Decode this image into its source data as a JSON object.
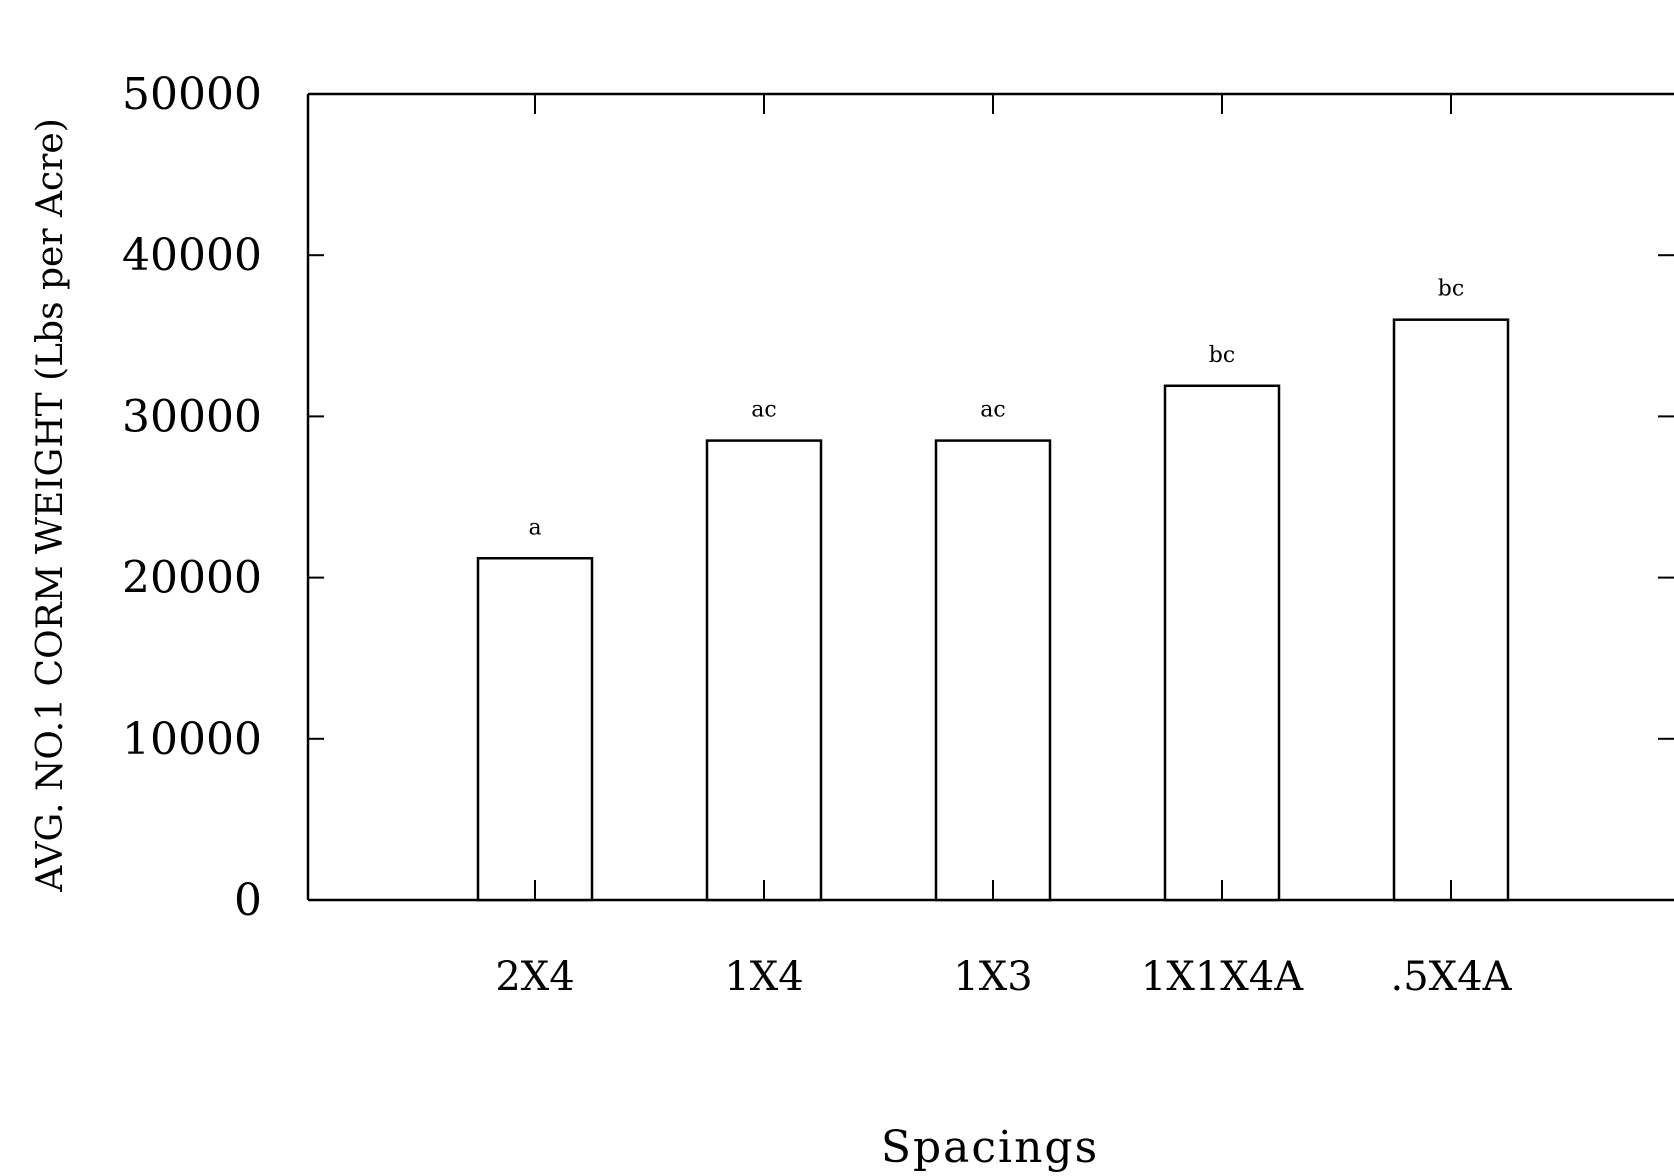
{
  "chart_data": {
    "type": "bar",
    "title": "",
    "xlabel": "Spacings",
    "ylabel": "AVG. NO.1 CORM WEIGHT (Lbs per Acre)",
    "ylim": [
      0,
      50000
    ],
    "yticks": [
      0,
      10000,
      20000,
      30000,
      40000,
      50000
    ],
    "ytick_labels": [
      "0",
      "10000",
      "20000",
      "30000",
      "40000",
      "50000"
    ],
    "categories": [
      "2X4",
      "1X4",
      "1X3",
      "1X1X4A",
      ".5X4A"
    ],
    "values": [
      21200,
      28500,
      28500,
      31900,
      36000
    ],
    "significance_labels": [
      "a",
      "ac",
      "ac",
      "bc",
      "bc"
    ],
    "grid": false,
    "bar_fill": "#ffffff",
    "bar_stroke": "#000000"
  }
}
